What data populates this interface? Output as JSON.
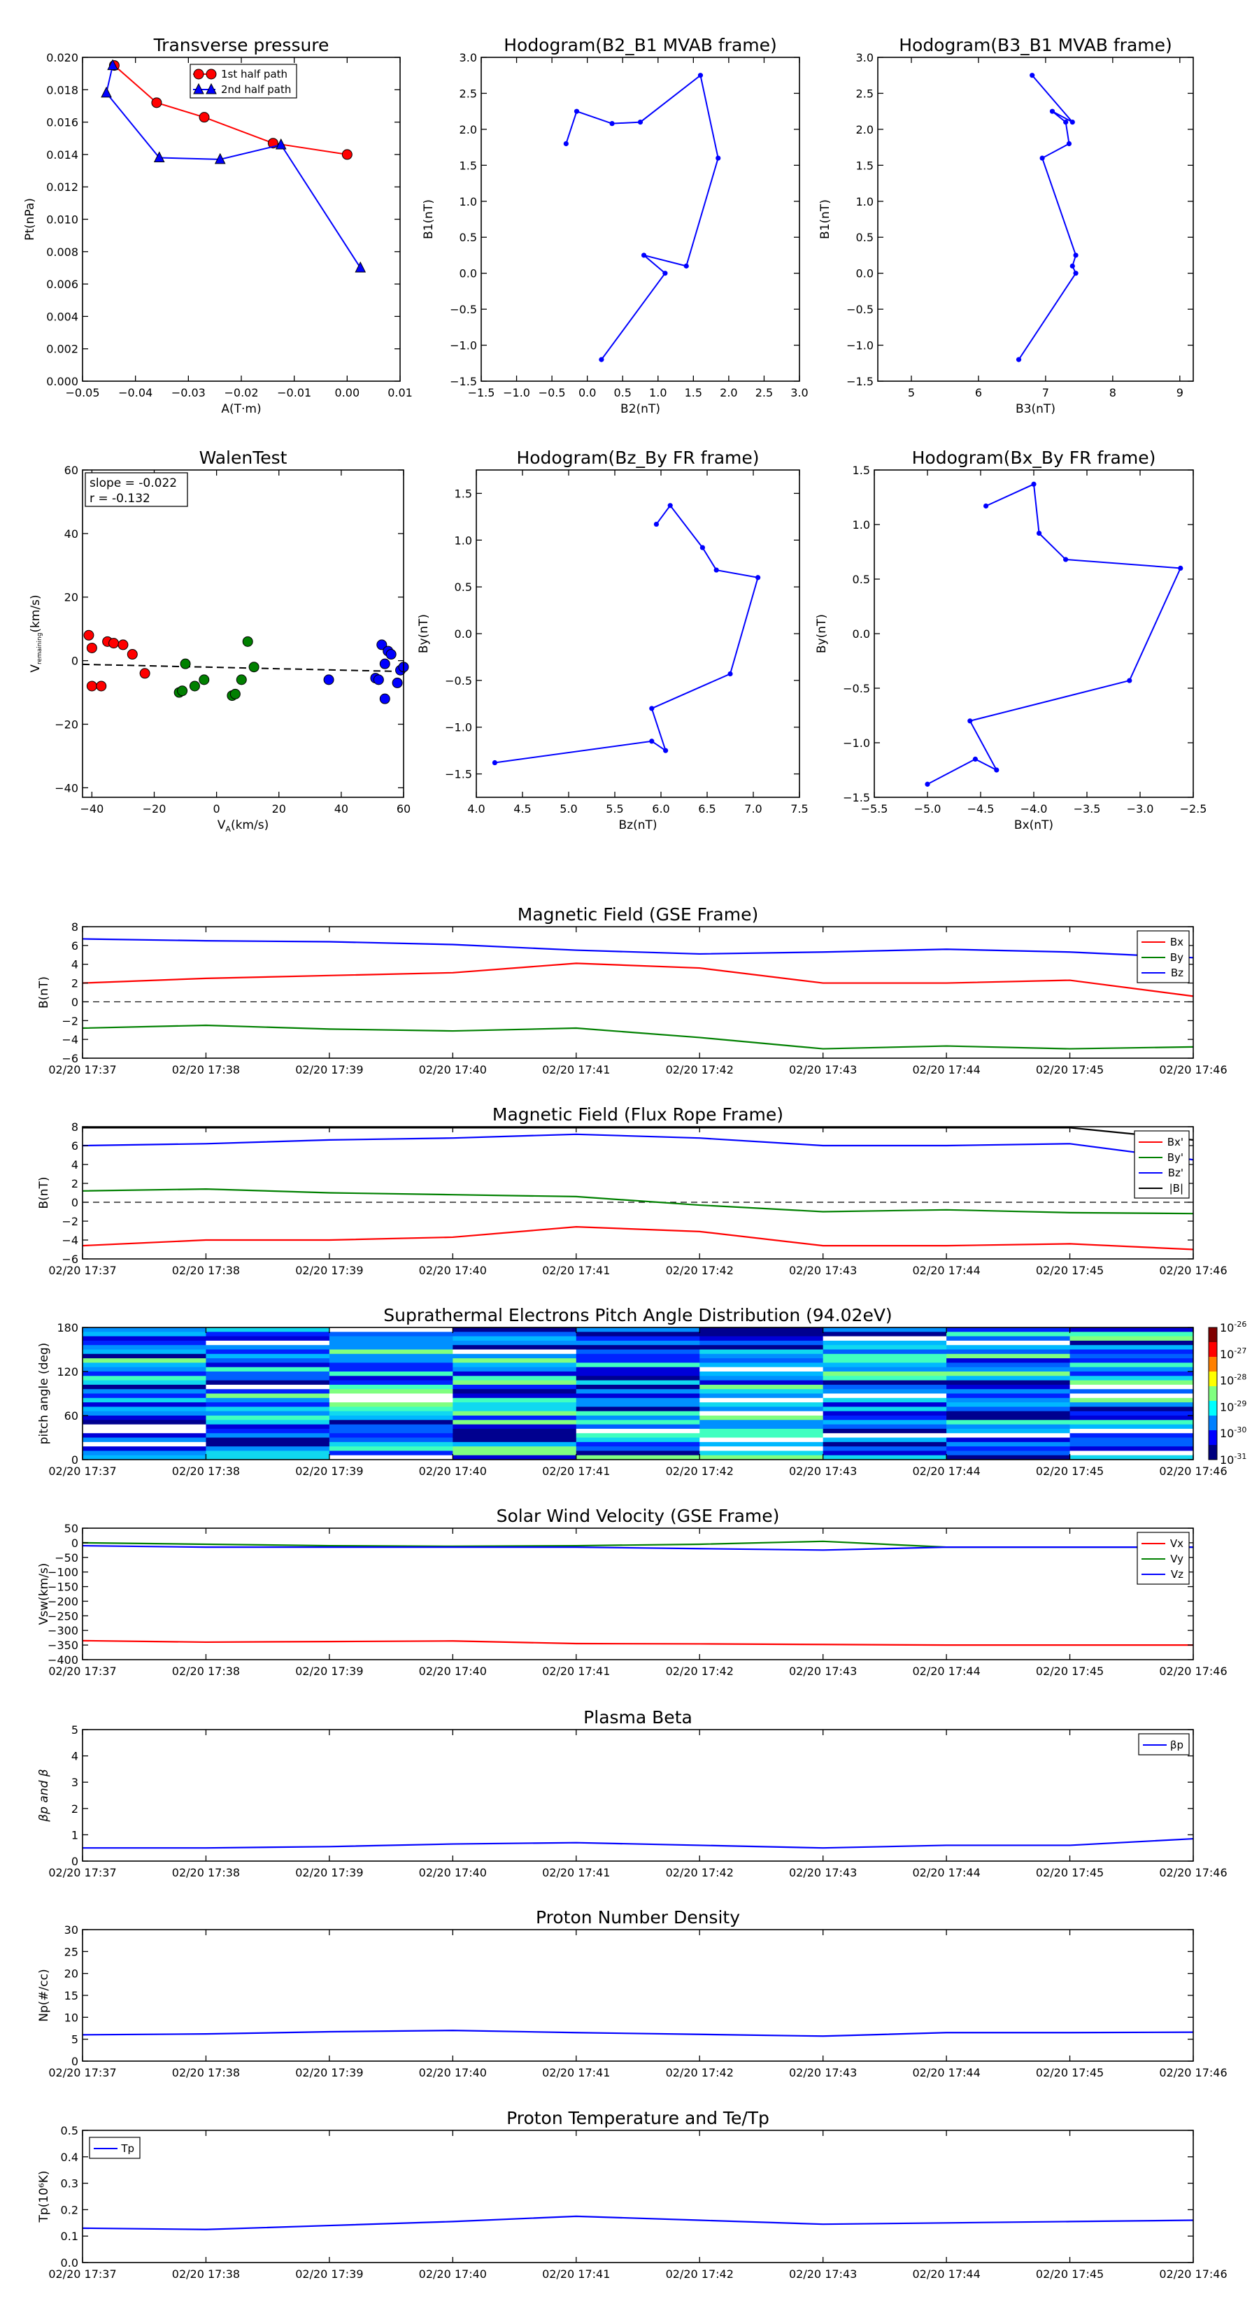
{
  "figures": {
    "time_ticks": [
      "02/20 17:37",
      "02/20 17:38",
      "02/20 17:39",
      "02/20 17:40",
      "02/20 17:41",
      "02/20 17:42",
      "02/20 17:43",
      "02/20 17:44",
      "02/20 17:45",
      "02/20 17:46"
    ],
    "colors": {
      "red": "#ff0000",
      "green": "#008000",
      "blue": "#0000ff",
      "black": "#000000"
    }
  },
  "chart_data": [
    {
      "id": "pt",
      "type": "line",
      "title": "Transverse pressure",
      "xlabel": "A(T·m)",
      "ylabel": "Pt(nPa)",
      "xlim": [
        -0.05,
        0.01
      ],
      "ylim": [
        0,
        0.02
      ],
      "xticks": [
        "−0.05",
        "−0.04",
        "−0.03",
        "−0.02",
        "−0.01",
        "0.00",
        "0.01"
      ],
      "yticks": [
        "0.000",
        "0.002",
        "0.004",
        "0.006",
        "0.008",
        "0.010",
        "0.012",
        "0.014",
        "0.016",
        "0.018",
        "0.020"
      ],
      "legend": {
        "position": "top-center",
        "entries": [
          "1st half path",
          "2nd half path"
        ]
      },
      "series": [
        {
          "name": "1st half path",
          "color": "#ff0000",
          "marker": "circle",
          "points": [
            [
              0.0,
              0.014
            ],
            [
              -0.014,
              0.0147
            ],
            [
              -0.027,
              0.0163
            ],
            [
              -0.036,
              0.0172
            ],
            [
              -0.044,
              0.0195
            ]
          ]
        },
        {
          "name": "2nd half path",
          "color": "#0000ff",
          "marker": "triangle",
          "points": [
            [
              -0.0443,
              0.0195
            ],
            [
              -0.0455,
              0.0178
            ],
            [
              -0.0355,
              0.0138
            ],
            [
              -0.024,
              0.0137
            ],
            [
              -0.0125,
              0.0146
            ],
            [
              0.0025,
              0.007
            ]
          ]
        }
      ]
    },
    {
      "id": "h1",
      "type": "line",
      "title": "Hodogram(B2_B1 MVAB frame)",
      "xlabel": "B2(nT)",
      "ylabel": "B1(nT)",
      "xlim": [
        -1.5,
        3.0
      ],
      "ylim": [
        -1.5,
        3.0
      ],
      "xticks": [
        "−1.5",
        "−1.0",
        "−0.5",
        "0.0",
        "0.5",
        "1.0",
        "1.5",
        "2.0",
        "2.5",
        "3.0"
      ],
      "yticks": [
        "−1.5",
        "−1.0",
        "−0.5",
        "0.0",
        "0.5",
        "1.0",
        "1.5",
        "2.0",
        "2.5",
        "3.0"
      ],
      "series": [
        {
          "color": "#0000ff",
          "marker": "dot",
          "points": [
            [
              -0.3,
              1.8
            ],
            [
              -0.15,
              2.25
            ],
            [
              0.35,
              2.08
            ],
            [
              0.75,
              2.1
            ],
            [
              1.6,
              2.75
            ],
            [
              1.85,
              1.6
            ],
            [
              1.4,
              0.1
            ],
            [
              0.8,
              0.25
            ],
            [
              1.1,
              0.0
            ],
            [
              0.2,
              -1.2
            ]
          ]
        }
      ]
    },
    {
      "id": "h2",
      "type": "line",
      "title": "Hodogram(B3_B1 MVAB frame)",
      "xlabel": "B3(nT)",
      "ylabel": "B1(nT)",
      "xlim": [
        4.5,
        9.2
      ],
      "ylim": [
        -1.5,
        3.0
      ],
      "xticks": [
        "5",
        "6",
        "7",
        "8",
        "9"
      ],
      "yticks": [
        "−1.5",
        "−1.0",
        "−0.5",
        "0.0",
        "0.5",
        "1.0",
        "1.5",
        "2.0",
        "2.5",
        "3.0"
      ],
      "series": [
        {
          "color": "#0000ff",
          "marker": "dot",
          "points": [
            [
              6.8,
              2.75
            ],
            [
              7.4,
              2.1
            ],
            [
              7.1,
              2.25
            ],
            [
              7.3,
              2.1
            ],
            [
              7.35,
              1.8
            ],
            [
              6.95,
              1.6
            ],
            [
              7.45,
              0.25
            ],
            [
              7.4,
              0.1
            ],
            [
              7.45,
              0.0
            ],
            [
              6.6,
              -1.2
            ]
          ]
        }
      ]
    },
    {
      "id": "walen",
      "type": "scatter",
      "title": "WalenTest",
      "xlabel": "V",
      "xlabel_sub": "A",
      "xlabel_suffix": "(km/s)",
      "ylabel": "V",
      "ylabel_sub": "remaining",
      "ylabel_suffix": "(km/s)",
      "xlim": [
        -43,
        60
      ],
      "ylim": [
        -43,
        60
      ],
      "xticks": [
        "−40",
        "−20",
        "0",
        "20",
        "40",
        "60"
      ],
      "yticks": [
        "−40",
        "−20",
        "0",
        "20",
        "40",
        "60"
      ],
      "annotation": {
        "slope": "slope = -0.022",
        "r": "r = -0.132"
      },
      "fit": {
        "slope": -0.022,
        "intercept": -2.1,
        "style": "dashed",
        "color": "#000000"
      },
      "series": [
        {
          "color": "#ff0000",
          "points": [
            [
              -41,
              8
            ],
            [
              -40,
              4
            ],
            [
              -40,
              -8
            ],
            [
              -37,
              -8
            ],
            [
              -35,
              6
            ],
            [
              -33,
              5.5
            ],
            [
              -30,
              5
            ],
            [
              -27,
              2
            ],
            [
              -23,
              -4
            ]
          ]
        },
        {
          "color": "#008000",
          "points": [
            [
              -12,
              -10
            ],
            [
              -11,
              -9.5
            ],
            [
              -10,
              -1
            ],
            [
              -7,
              -8
            ],
            [
              -4,
              -6
            ],
            [
              5,
              -11
            ],
            [
              6,
              -10.5
            ],
            [
              8,
              -6
            ],
            [
              10,
              6
            ],
            [
              12,
              -2
            ]
          ]
        },
        {
          "color": "#0000ff",
          "points": [
            [
              36,
              -6
            ],
            [
              51,
              -5.5
            ],
            [
              52,
              -6
            ],
            [
              53,
              5
            ],
            [
              54,
              -12
            ],
            [
              54,
              -1
            ],
            [
              55,
              3
            ],
            [
              56,
              2
            ],
            [
              58,
              -7
            ],
            [
              59,
              -3
            ],
            [
              60,
              -2
            ]
          ]
        }
      ]
    },
    {
      "id": "h3",
      "type": "line",
      "title": "Hodogram(Bz_By FR frame)",
      "xlabel": "Bz(nT)",
      "ylabel": "By(nT)",
      "xlim": [
        4.0,
        7.5
      ],
      "ylim": [
        -1.75,
        1.75
      ],
      "xticks": [
        "4.0",
        "4.5",
        "5.0",
        "5.5",
        "6.0",
        "6.5",
        "7.0",
        "7.5"
      ],
      "yticks": [
        "−1.5",
        "−1.0",
        "−0.5",
        "0.0",
        "0.5",
        "1.0",
        "1.5"
      ],
      "series": [
        {
          "color": "#0000ff",
          "marker": "dot",
          "points": [
            [
              5.95,
              1.17
            ],
            [
              6.1,
              1.37
            ],
            [
              6.45,
              0.92
            ],
            [
              6.6,
              0.68
            ],
            [
              7.05,
              0.6
            ],
            [
              6.75,
              -0.43
            ],
            [
              5.9,
              -0.8
            ],
            [
              6.05,
              -1.25
            ],
            [
              5.9,
              -1.15
            ],
            [
              4.2,
              -1.38
            ]
          ]
        }
      ]
    },
    {
      "id": "h4",
      "type": "line",
      "title": "Hodogram(Bx_By FR frame)",
      "xlabel": "Bx(nT)",
      "ylabel": "By(nT)",
      "xlim": [
        -5.5,
        -2.5
      ],
      "ylim": [
        -1.5,
        1.5
      ],
      "xticks": [
        "−5.5",
        "−5.0",
        "−4.5",
        "−4.0",
        "−3.5",
        "−3.0",
        "−2.5"
      ],
      "yticks": [
        "−1.5",
        "−1.0",
        "−0.5",
        "0.0",
        "0.5",
        "1.0",
        "1.5"
      ],
      "series": [
        {
          "color": "#0000ff",
          "marker": "dot",
          "points": [
            [
              -4.45,
              1.17
            ],
            [
              -4.0,
              1.37
            ],
            [
              -3.95,
              0.92
            ],
            [
              -3.7,
              0.68
            ],
            [
              -2.62,
              0.6
            ],
            [
              -3.1,
              -0.43
            ],
            [
              -4.6,
              -0.8
            ],
            [
              -4.35,
              -1.25
            ],
            [
              -4.55,
              -1.15
            ],
            [
              -5.0,
              -1.38
            ]
          ]
        }
      ]
    },
    {
      "id": "bgse",
      "type": "line",
      "title": "Magnetic Field (GSE Frame)",
      "ylabel": "B(nT)",
      "ylim": [
        -6,
        8
      ],
      "yticks": [
        "−6",
        "−4",
        "−2",
        "0",
        "2",
        "4",
        "6",
        "8"
      ],
      "zero_line": true,
      "legend": {
        "position": "top-right",
        "entries": [
          "Bx",
          "By",
          "Bz"
        ]
      },
      "series": [
        {
          "name": "Bx",
          "color": "#ff0000",
          "values": [
            2.0,
            2.5,
            2.8,
            3.1,
            4.1,
            3.6,
            2.0,
            2.0,
            2.3,
            0.6
          ]
        },
        {
          "name": "By",
          "color": "#008000",
          "values": [
            -2.8,
            -2.5,
            -2.9,
            -3.1,
            -2.8,
            -3.8,
            -5.0,
            -4.7,
            -5.0,
            -4.8
          ]
        },
        {
          "name": "Bz",
          "color": "#0000ff",
          "values": [
            6.7,
            6.5,
            6.4,
            6.1,
            5.5,
            5.1,
            5.3,
            5.6,
            5.3,
            4.7
          ]
        }
      ]
    },
    {
      "id": "bfr",
      "type": "line",
      "title": "Magnetic Field (Flux Rope Frame)",
      "ylabel": "B(nT)",
      "ylim": [
        -6,
        8
      ],
      "yticks": [
        "−6",
        "−4",
        "−2",
        "0",
        "2",
        "4",
        "6",
        "8"
      ],
      "zero_line": true,
      "legend": {
        "position": "top-right",
        "entries": [
          "Bx'",
          "By'",
          "Bz'",
          "|B|"
        ]
      },
      "series": [
        {
          "name": "Bx'",
          "color": "#ff0000",
          "values": [
            -4.6,
            -4.0,
            -4.0,
            -3.7,
            -2.6,
            -3.1,
            -4.6,
            -4.6,
            -4.4,
            -5.0
          ]
        },
        {
          "name": "By'",
          "color": "#008000",
          "values": [
            1.2,
            1.4,
            1.0,
            0.8,
            0.6,
            -0.3,
            -1.0,
            -0.8,
            -1.1,
            -1.2
          ]
        },
        {
          "name": "Bz'",
          "color": "#0000ff",
          "values": [
            6.0,
            6.2,
            6.6,
            6.8,
            7.2,
            6.8,
            6.0,
            6.0,
            6.2,
            4.5
          ]
        },
        {
          "name": "|B|",
          "color": "#000000",
          "values": [
            7.9,
            7.9,
            7.9,
            7.9,
            7.9,
            7.9,
            7.9,
            7.9,
            7.9,
            6.6
          ]
        }
      ]
    },
    {
      "id": "pad",
      "type": "heatmap",
      "title": "Suprathermal Electrons Pitch Angle Distribution (94.02eV)",
      "ylabel": "pitch angle (deg)",
      "ylim": [
        0,
        180
      ],
      "yticks": [
        "0",
        "60",
        "120",
        "180"
      ],
      "colorbar_ticks": [
        "10",
        "10",
        "10",
        "10",
        "10",
        "10"
      ],
      "colorbar_exponents": [
        "-26",
        "-27",
        "-28",
        "-29",
        "-30",
        "-31"
      ],
      "columns": 9,
      "rows": 30
    },
    {
      "id": "vsw",
      "type": "line",
      "title": "Solar Wind Velocity (GSE Frame)",
      "ylabel": "Vsw(km/s)",
      "ylim": [
        -400,
        50
      ],
      "yticks": [
        "−400",
        "−350",
        "−300",
        "−250",
        "−200",
        "−150",
        "−100",
        "−50",
        "0",
        "50"
      ],
      "legend": {
        "position": "top-right",
        "entries": [
          "Vx",
          "Vy",
          "Vz"
        ]
      },
      "series": [
        {
          "name": "Vx",
          "color": "#ff0000",
          "values": [
            -335,
            -340,
            -338,
            -336,
            -345,
            -346,
            -348,
            -350,
            -350,
            -350
          ]
        },
        {
          "name": "Vy",
          "color": "#008000",
          "values": [
            0,
            -5,
            -10,
            -12,
            -10,
            -5,
            5,
            -15,
            -15,
            -15
          ]
        },
        {
          "name": "Vz",
          "color": "#0000ff",
          "values": [
            -10,
            -15,
            -15,
            -15,
            -15,
            -20,
            -25,
            -15,
            -15,
            -15
          ]
        }
      ]
    },
    {
      "id": "beta",
      "type": "line",
      "title": "Plasma Beta",
      "ylabel": "β",
      "ylabel_full": "βp and β",
      "ylim": [
        0,
        5
      ],
      "yticks": [
        "0",
        "1",
        "2",
        "3",
        "4",
        "5"
      ],
      "legend": {
        "position": "top-right",
        "entries": [
          "βp"
        ]
      },
      "series": [
        {
          "name": "βp",
          "color": "#0000ff",
          "values": [
            0.5,
            0.5,
            0.55,
            0.65,
            0.7,
            0.6,
            0.5,
            0.6,
            0.6,
            0.85
          ]
        }
      ]
    },
    {
      "id": "np",
      "type": "line",
      "title": "Proton Number Density",
      "ylabel": "Np(#/cc)",
      "ylim": [
        0,
        30
      ],
      "yticks": [
        "0",
        "5",
        "10",
        "15",
        "20",
        "25",
        "30"
      ],
      "series": [
        {
          "color": "#0000ff",
          "values": [
            6.0,
            6.2,
            6.7,
            7.0,
            6.5,
            6.1,
            5.7,
            6.5,
            6.5,
            6.6
          ]
        }
      ]
    },
    {
      "id": "tp",
      "type": "line",
      "title": "Proton Temperature and Te/Tp",
      "ylabel": "Tp(10⁶K)",
      "ylim": [
        0,
        0.5
      ],
      "yticks": [
        "0.0",
        "0.1",
        "0.2",
        "0.3",
        "0.4",
        "0.5"
      ],
      "legend": {
        "position": "top-left",
        "entries": [
          "Tp"
        ]
      },
      "series": [
        {
          "name": "Tp",
          "color": "#0000ff",
          "values": [
            0.13,
            0.125,
            0.14,
            0.155,
            0.175,
            0.16,
            0.145,
            0.15,
            0.155,
            0.16
          ]
        }
      ]
    }
  ]
}
